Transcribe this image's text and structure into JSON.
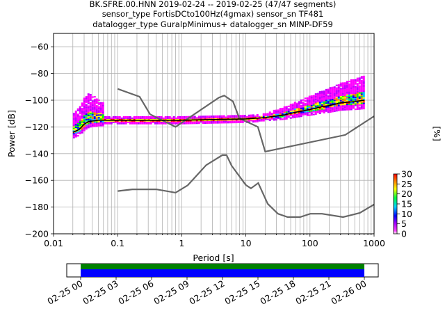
{
  "title_lines": [
    "BK.SFRE.00.HNN   2019-02-24 -- 2019-02-25  (47/47 segments)",
    "sensor_type FortisDCto100Hz(4gmax) sensor_sn TF481",
    "datalogger_type GuralpMinimus+ datalogger_sn MINP-DF59"
  ],
  "chart_data": {
    "type": "heatmap",
    "xlabel": "Period [s]",
    "ylabel": "Power [dB]",
    "x_scale": "log",
    "xlim": [
      0.01,
      1000
    ],
    "ylim": [
      -200,
      -50
    ],
    "grid": true,
    "x_ticks": [
      {
        "value": 0.01,
        "label": "0.01"
      },
      {
        "value": 0.1,
        "label": "0.1"
      },
      {
        "value": 1,
        "label": "1"
      },
      {
        "value": 10,
        "label": "10"
      },
      {
        "value": 100,
        "label": "100"
      },
      {
        "value": 1000,
        "label": "1000"
      }
    ],
    "y_ticks": [
      {
        "value": -60,
        "label": "−60"
      },
      {
        "value": -80,
        "label": "−80"
      },
      {
        "value": -100,
        "label": "−100"
      },
      {
        "value": -120,
        "label": "−120"
      },
      {
        "value": -140,
        "label": "−140"
      },
      {
        "value": -160,
        "label": "−160"
      },
      {
        "value": -180,
        "label": "−180"
      },
      {
        "value": -200,
        "label": "−200"
      }
    ],
    "noise_models": [
      {
        "x": [
          0.1,
          0.22,
          0.32,
          0.8,
          3.8,
          4.6,
          6.3,
          7.9,
          15.4,
          20,
          354.8,
          1000
        ],
        "y": [
          -91.5,
          -97.4,
          -110.5,
          -120,
          -98,
          -96.5,
          -101,
          -113.5,
          -120,
          -138.5,
          -126,
          -112
        ]
      },
      {
        "x": [
          0.1,
          0.17,
          0.4,
          0.8,
          1.24,
          2.4,
          4.3,
          5,
          6,
          10,
          12,
          15.6,
          21.9,
          31.6,
          45,
          70,
          101,
          154,
          328,
          600,
          1000
        ],
        "y": [
          -168,
          -166.7,
          -166.7,
          -169.2,
          -163.7,
          -148.6,
          -141.1,
          -141.1,
          -149,
          -163.5,
          -166,
          -162,
          -177.5,
          -185,
          -187.5,
          -187.5,
          -185,
          -185,
          -187.5,
          -184.4,
          -178
        ]
      }
    ],
    "mode_curve": {
      "x": [
        0.02,
        0.025,
        0.03,
        0.035,
        0.05,
        0.1,
        0.3,
        1,
        3,
        10,
        20,
        40,
        60,
        100,
        150,
        200,
        300,
        500,
        700
      ],
      "y": [
        -124,
        -122,
        -118,
        -116,
        -115,
        -115,
        -115,
        -115,
        -114.5,
        -114,
        -113,
        -111,
        -109,
        -107,
        -105,
        -104,
        -102,
        -101,
        -100
      ]
    },
    "colorbar": {
      "label": "[%]",
      "range": [
        0,
        30
      ],
      "ticks": [
        {
          "value": 0,
          "label": "0"
        },
        {
          "value": 5,
          "label": "5"
        },
        {
          "value": 10,
          "label": "10"
        },
        {
          "value": 15,
          "label": "15"
        },
        {
          "value": 20,
          "label": "20"
        },
        {
          "value": 25,
          "label": "25"
        },
        {
          "value": 30,
          "label": "30"
        }
      ]
    },
    "coverage": {
      "time_ticks": [
        "02-25 00",
        "02-25 03",
        "02-25 06",
        "02-25 09",
        "02-25 12",
        "02-25 15",
        "02-25 18",
        "02-25 21",
        "02-26 00"
      ],
      "start_hour": 0,
      "end_hour": 24,
      "colors": {
        "top": "#008000",
        "bottom": "#0000ff"
      }
    }
  }
}
